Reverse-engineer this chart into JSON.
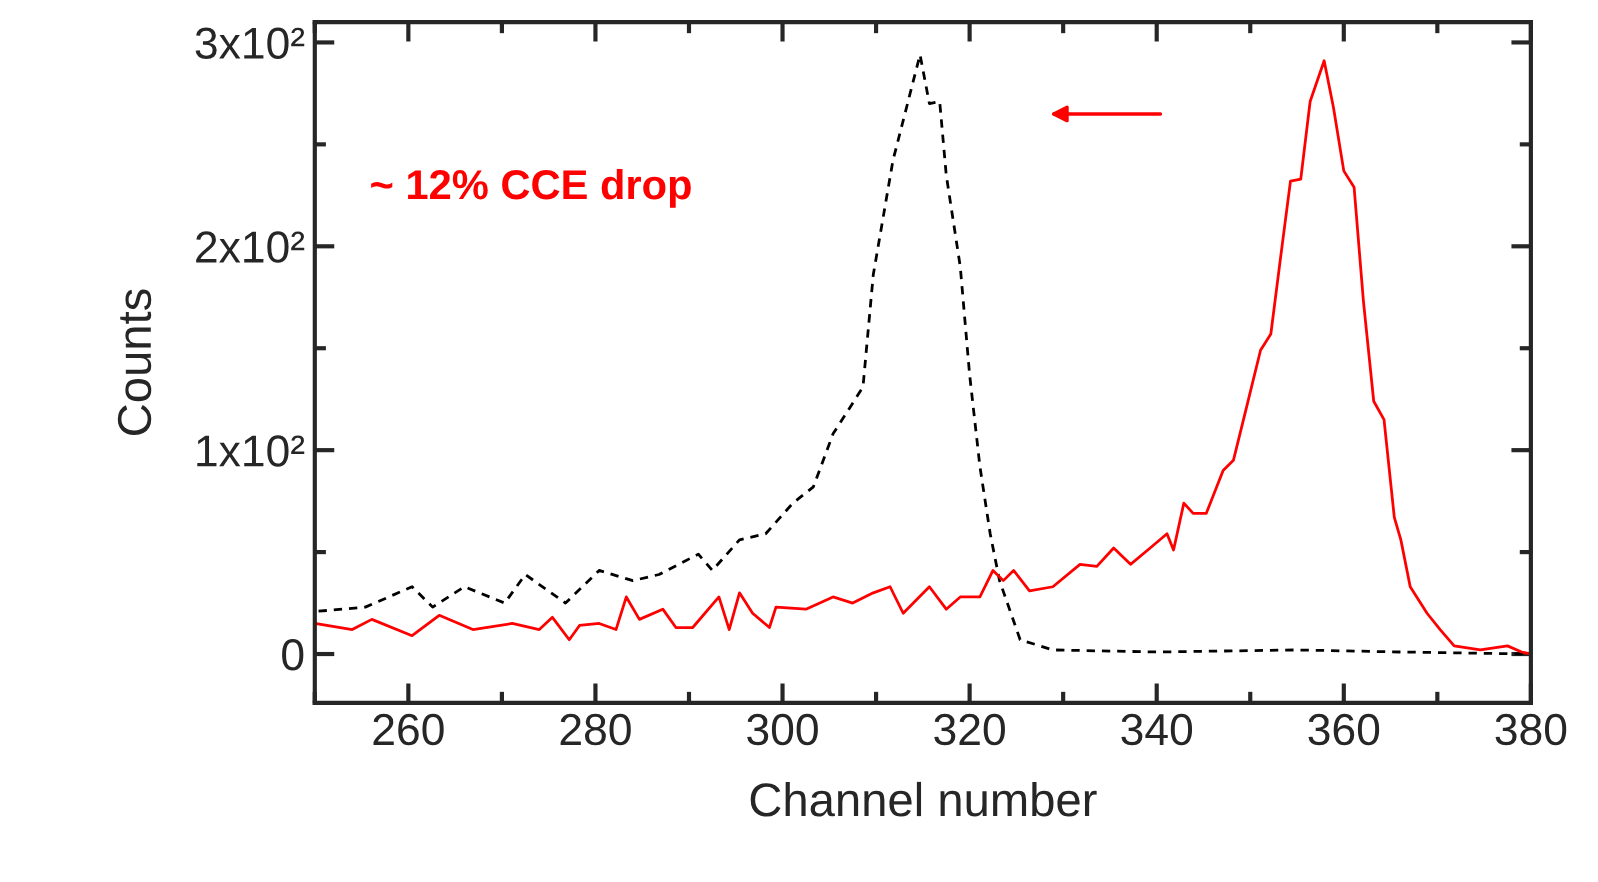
{
  "chart_data": {
    "type": "line",
    "xlabel": "Channel number",
    "ylabel": "Counts",
    "xlim": [
      250,
      380
    ],
    "xticks": [
      260,
      280,
      300,
      320,
      340,
      360,
      380
    ],
    "ylim": [
      -24,
      310
    ],
    "yticks": [
      {
        "value": 0,
        "label": "0"
      },
      {
        "value": 100,
        "label": "1x10²"
      },
      {
        "value": 200,
        "label": "2x10²"
      },
      {
        "value": 300,
        "label": "3x10²"
      }
    ],
    "grid": false,
    "legend": false,
    "annotations": [
      "~ 12% CCE drop"
    ],
    "series": [
      {
        "color": "#000000",
        "line_style": "dashed",
        "x": [
          250.4,
          255.4,
          260.4,
          262.6,
          266,
          270.3,
          272.5,
          276.8,
          280.4,
          284,
          286.8,
          291,
          292.5,
          295.4,
          298.2,
          301.1,
          303.3,
          305.4,
          306.8,
          308.6,
          309.7,
          311.8,
          314.7,
          315.7,
          316.8,
          317.5,
          319,
          320,
          321.1,
          322.2,
          323.2,
          325.4,
          328.9,
          340,
          355,
          366,
          380
        ],
        "values": [
          21,
          23,
          33,
          23,
          33,
          25,
          39,
          25,
          41,
          36,
          39,
          49,
          41,
          56,
          59,
          74,
          82,
          108,
          118,
          131,
          186,
          242,
          294,
          270,
          271,
          235,
          190,
          137,
          92,
          59,
          36,
          7,
          2,
          1,
          2,
          1,
          0
        ]
      },
      {
        "color": "#ff0000",
        "line_style": "solid",
        "x": [
          250,
          254,
          256.1,
          260.4,
          263.3,
          266.9,
          271.1,
          274,
          275.4,
          277.2,
          278.3,
          280.4,
          282.2,
          283.3,
          284.7,
          287.2,
          288.6,
          290.4,
          293.2,
          294.3,
          295.4,
          296.8,
          298.6,
          299.3,
          302.5,
          305.4,
          307.5,
          309.7,
          311.5,
          312.9,
          315.7,
          317.5,
          319,
          321.1,
          322.5,
          323.6,
          324.7,
          326.4,
          328.9,
          331.8,
          333.6,
          335.4,
          337.2,
          339.3,
          341.1,
          341.8,
          342.9,
          343.9,
          345.3,
          347.1,
          348.2,
          349.6,
          351.1,
          352.2,
          353.2,
          354.3,
          355.4,
          356.4,
          357.9,
          358.9,
          360,
          361.1,
          362.1,
          363.2,
          364.3,
          365.4,
          366.1,
          367.1,
          368.9,
          370.3,
          371.8,
          374.6,
          377.5,
          379,
          380
        ],
        "values": [
          15,
          12,
          17,
          9,
          19,
          12,
          15,
          12,
          18,
          7,
          14,
          15,
          12,
          28,
          17,
          22,
          13,
          13,
          28,
          12,
          30,
          20,
          13,
          23,
          22,
          28,
          25,
          30,
          33,
          20,
          33,
          22,
          28,
          28,
          41,
          36,
          41,
          31,
          33,
          44,
          43,
          52,
          44,
          52,
          59,
          51,
          74,
          69,
          69,
          90,
          95,
          121,
          149,
          157,
          193,
          232,
          233,
          271,
          291,
          268,
          237,
          229,
          173,
          124,
          115,
          67,
          56,
          33,
          20,
          12,
          4,
          2,
          4,
          1,
          0
        ]
      }
    ]
  }
}
